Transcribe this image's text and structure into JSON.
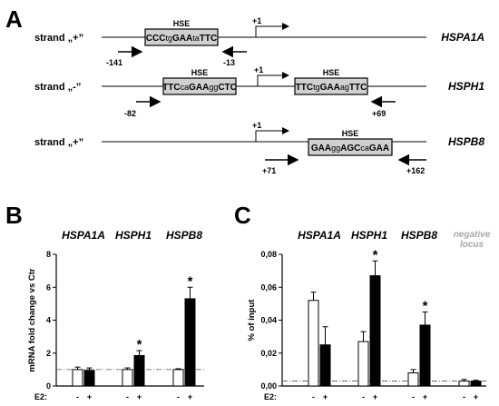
{
  "panel_a": {
    "label": "A",
    "rows": [
      {
        "strand": "strand „+”",
        "gene": "HSPA1A",
        "hse_label": "HSE",
        "tss": "+1",
        "boxes": [
          [
            {
              "t": "CCC",
              "b": true
            },
            {
              "t": "tg",
              "b": false
            },
            {
              "t": "GAA",
              "b": true
            },
            {
              "t": "ta",
              "b": false
            },
            {
              "t": "TTC",
              "b": true
            }
          ]
        ],
        "primers": [
          "-141",
          "-13"
        ]
      },
      {
        "strand": "strand „-”",
        "gene": "HSPH1",
        "hse_label": "HSE",
        "tss": "+1",
        "boxes": [
          [
            {
              "t": "TTC",
              "b": true
            },
            {
              "t": "ca",
              "b": false
            },
            {
              "t": "GAA",
              "b": true
            },
            {
              "t": "gg",
              "b": false
            },
            {
              "t": "CTC",
              "b": true
            }
          ],
          [
            {
              "t": "TTC",
              "b": true
            },
            {
              "t": "tg",
              "b": false
            },
            {
              "t": "GAA",
              "b": true
            },
            {
              "t": "ag",
              "b": false
            },
            {
              "t": "TTC",
              "b": true
            }
          ]
        ],
        "primers": [
          "-82",
          "+69"
        ]
      },
      {
        "strand": "strand „+”",
        "gene": "HSPB8",
        "hse_label": "HSE",
        "tss": "+1",
        "boxes": [
          [
            {
              "t": "GAA",
              "b": true
            },
            {
              "t": "gg",
              "b": false
            },
            {
              "t": "AGC",
              "b": true
            },
            {
              "t": "ca",
              "b": false
            },
            {
              "t": "GAA",
              "b": true
            }
          ]
        ],
        "primers": [
          "+71",
          "+162"
        ]
      }
    ]
  },
  "chart_data": [
    {
      "panel": "B",
      "type": "bar",
      "ylabel": "mRNA fold change vs Ctr",
      "ylim": [
        0,
        8
      ],
      "yticks": [
        "0",
        "2",
        "4",
        "6",
        "8"
      ],
      "reference_line": 1,
      "x_prefix": "E2:",
      "treatment_labels": [
        "-",
        "+"
      ],
      "groups": [
        {
          "label": "HSPA1A",
          "values": [
            1.0,
            0.95
          ],
          "errors": [
            0.15,
            0.15
          ],
          "significant": [
            false,
            false
          ]
        },
        {
          "label": "HSPH1",
          "values": [
            1.0,
            1.85
          ],
          "errors": [
            0.1,
            0.3
          ],
          "significant": [
            false,
            true
          ]
        },
        {
          "label": "HSPB8",
          "values": [
            1.0,
            5.3
          ],
          "errors": [
            0.05,
            0.7
          ],
          "significant": [
            false,
            true
          ]
        }
      ],
      "colors": {
        "minus": "#ffffff",
        "plus": "#000000"
      }
    },
    {
      "panel": "C",
      "type": "bar",
      "ylabel": "% of input",
      "ylim": [
        0,
        0.08
      ],
      "yticks": [
        "0,00",
        "0,02",
        "0,04",
        "0,06",
        "0,08"
      ],
      "reference_line": 0.003,
      "x_prefix": "E2:",
      "treatment_labels": [
        "-",
        "+"
      ],
      "groups": [
        {
          "label": "HSPA1A",
          "values": [
            0.052,
            0.025
          ],
          "errors": [
            0.005,
            0.011
          ],
          "significant": [
            false,
            false
          ]
        },
        {
          "label": "HSPH1",
          "values": [
            0.027,
            0.067
          ],
          "errors": [
            0.006,
            0.009
          ],
          "significant": [
            false,
            true
          ]
        },
        {
          "label": "HSPB8",
          "values": [
            0.008,
            0.037
          ],
          "errors": [
            0.002,
            0.008
          ],
          "significant": [
            false,
            true
          ]
        },
        {
          "label": "negative locus",
          "values": [
            0.003,
            0.003
          ],
          "errors": [
            0.001,
            0.0005
          ],
          "significant": [
            false,
            false
          ]
        }
      ],
      "colors": {
        "minus": "#ffffff",
        "plus": "#000000",
        "muted_label": "#a8a8a8"
      }
    }
  ],
  "significance_mark": "*"
}
